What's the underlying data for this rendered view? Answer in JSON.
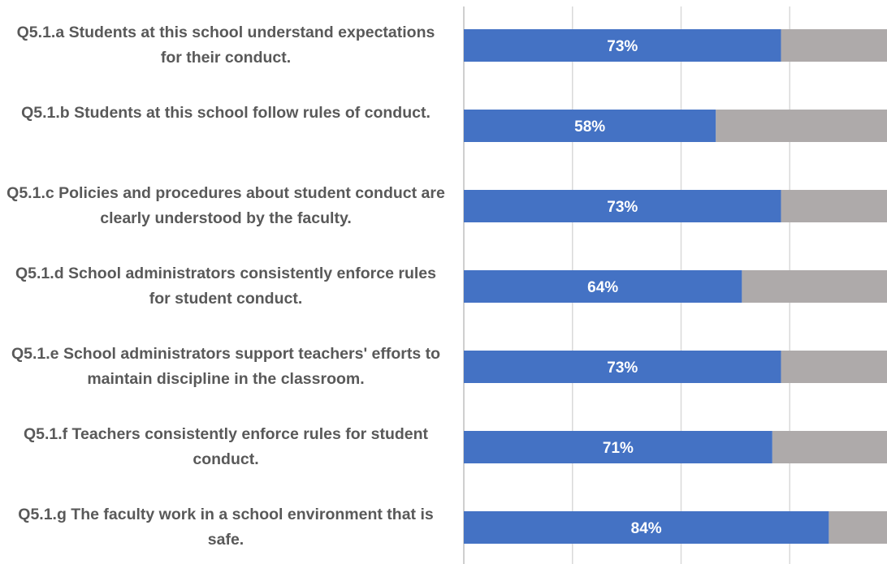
{
  "colors": {
    "agree": "#4472c4",
    "remainder": "#aeaaaa",
    "grid": "#d9d9d9",
    "axis": "#bfbfbf",
    "label_text": "#595959",
    "data_label_text": "#ffffff"
  },
  "chart_data": {
    "type": "bar",
    "orientation": "horizontal",
    "stacked": true,
    "categories": [
      "Q5.1.a Students at this school understand expectations for their conduct.",
      "Q5.1.b Students at this school follow rules of conduct.",
      "Q5.1.c Policies and procedures about student conduct are clearly understood by the faculty.",
      "Q5.1.d School administrators consistently enforce rules for student conduct.",
      "Q5.1.e School administrators support teachers' efforts to maintain discipline in the classroom.",
      "Q5.1.f Teachers consistently enforce rules for student conduct.",
      "Q5.1.g The faculty work in a school environment that is safe."
    ],
    "series": [
      {
        "values": [
          73,
          58,
          73,
          64,
          73,
          71,
          84
        ],
        "data_labels": [
          "73%",
          "58%",
          "73%",
          "64%",
          "73%",
          "71%",
          "84%"
        ]
      },
      {
        "values": [
          27,
          42,
          27,
          36,
          27,
          29,
          16
        ]
      }
    ],
    "xlim": [
      0,
      100
    ],
    "grid": true,
    "legend": "none"
  }
}
